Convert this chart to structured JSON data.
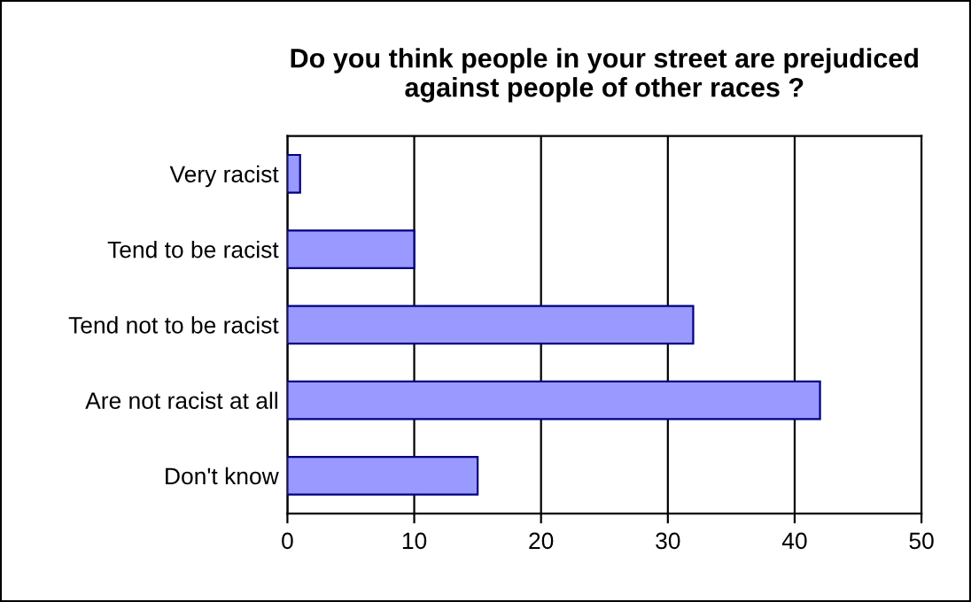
{
  "chart_data": {
    "type": "bar",
    "orientation": "horizontal",
    "title": "Do you think people in your street are prejudiced\nagainst people of other races ?",
    "categories": [
      "Very racist",
      "Tend to be racist",
      "Tend not to be racist",
      "Are not racist at all",
      "Don't know"
    ],
    "values": [
      1,
      10,
      32,
      42,
      15
    ],
    "color": "#9999ff",
    "xlim": [
      0,
      50
    ],
    "xticks": [
      0,
      10,
      20,
      30,
      40,
      50
    ],
    "grid": "x",
    "legend": false
  }
}
